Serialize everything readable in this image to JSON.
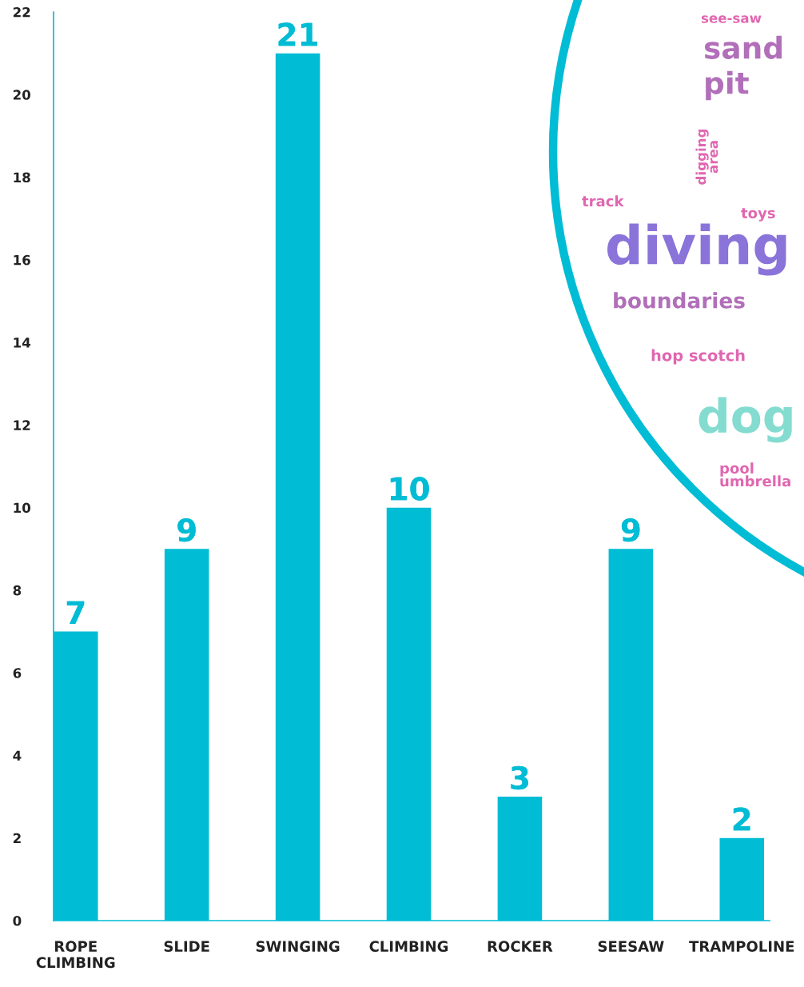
{
  "chart_data": {
    "type": "bar",
    "categories": [
      "ROPE\nCLIMBING",
      "SLIDE",
      "SWINGING",
      "CLIMBING",
      "ROCKER",
      "SEESAW",
      "TRAMPOLINE"
    ],
    "values": [
      7,
      9,
      21,
      10,
      3,
      9,
      2
    ],
    "color": "#00bcd4",
    "ylim": [
      0,
      22
    ],
    "yticks": [
      0,
      2,
      4,
      6,
      8,
      10,
      12,
      14,
      16,
      18,
      20,
      22
    ],
    "data_labels": true,
    "grid": false,
    "legend": false,
    "annotations": [
      "see-saw",
      "sand",
      "pit",
      "digging\narea",
      "track",
      "toys",
      "diving",
      "boundaries",
      "hop scotch",
      "dog",
      "pool\numbrella"
    ]
  }
}
